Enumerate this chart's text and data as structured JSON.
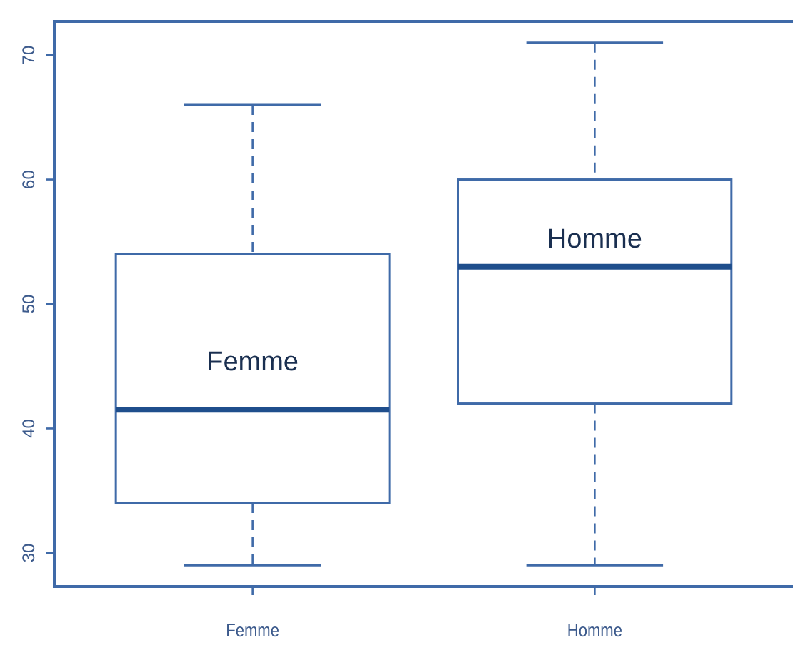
{
  "chart_data": {
    "type": "box",
    "categories": [
      "Femme",
      "Homme"
    ],
    "boxes": [
      {
        "low": 29,
        "q1": 34,
        "median": 41.5,
        "q3": 54,
        "high": 66
      },
      {
        "low": 29,
        "q1": 42,
        "median": 53,
        "q3": 60,
        "high": 71
      }
    ],
    "color": "#3f6aa8",
    "ylim": [
      27.3,
      72.7
    ],
    "yticks": [
      30,
      40,
      50,
      60,
      70
    ],
    "grid": false,
    "annotations": [
      "Femme",
      "Homme"
    ]
  }
}
